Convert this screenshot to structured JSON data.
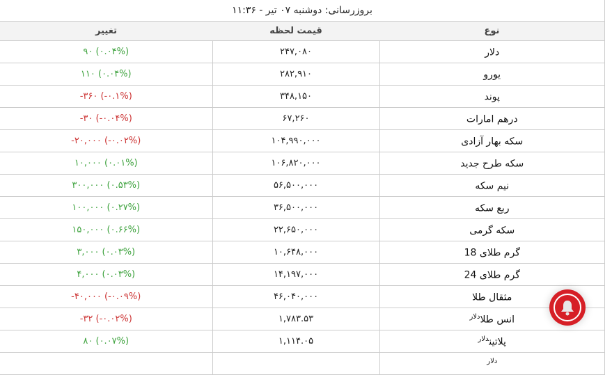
{
  "update_text": "بروزرسانی: دوشنبه ۰۷ تیر - ۱۱:۳۶",
  "headers": {
    "type": "نوع",
    "price": "قیمت لحظه",
    "change": "تغییر"
  },
  "colors": {
    "positive": "#3fa33f",
    "negative": "#cc3333",
    "bell": "#d61f26"
  },
  "rows": [
    {
      "name": "دلار",
      "unit": "",
      "price": "۲۴۷,۰۸۰",
      "change": "۹۰ (۰.۰۴%)",
      "dir": "pos"
    },
    {
      "name": "یورو",
      "unit": "",
      "price": "۲۸۲,۹۱۰",
      "change": "۱۱۰ (۰.۰۴%)",
      "dir": "pos"
    },
    {
      "name": "پوند",
      "unit": "",
      "price": "۳۴۸,۱۵۰",
      "change": "-۳۶۰ (-۰.۱%)",
      "dir": "neg"
    },
    {
      "name": "درهم امارات",
      "unit": "",
      "price": "۶۷,۲۶۰",
      "change": "-۳۰ (-۰.۰۴%)",
      "dir": "neg"
    },
    {
      "name": "سکه بهار آزادی",
      "unit": "",
      "price": "۱۰۴,۹۹۰,۰۰۰",
      "change": "-۲۰,۰۰۰ (-۰.۰۲%)",
      "dir": "neg"
    },
    {
      "name": "سکه طرح جدید",
      "unit": "",
      "price": "۱۰۶,۸۲۰,۰۰۰",
      "change": "۱۰,۰۰۰ (۰.۰۱%)",
      "dir": "pos"
    },
    {
      "name": "نیم سکه",
      "unit": "",
      "price": "۵۶,۵۰۰,۰۰۰",
      "change": "۳۰۰,۰۰۰ (۰.۵۳%)",
      "dir": "pos"
    },
    {
      "name": "ربع سکه",
      "unit": "",
      "price": "۳۶,۵۰۰,۰۰۰",
      "change": "۱۰۰,۰۰۰ (۰.۲۷%)",
      "dir": "pos"
    },
    {
      "name": "سکه گرمی",
      "unit": "",
      "price": "۲۲,۶۵۰,۰۰۰",
      "change": "۱۵۰,۰۰۰ (۰.۶۶%)",
      "dir": "pos"
    },
    {
      "name": "گرم طلای 18",
      "unit": "",
      "price": "۱۰,۶۴۸,۰۰۰",
      "change": "۳,۰۰۰ (۰.۰۳%)",
      "dir": "pos"
    },
    {
      "name": "گرم طلای 24",
      "unit": "",
      "price": "۱۴,۱۹۷,۰۰۰",
      "change": "۴,۰۰۰ (۰.۰۳%)",
      "dir": "pos"
    },
    {
      "name": "مثقال طلا",
      "unit": "",
      "price": "۴۶,۰۴۰,۰۰۰",
      "change": "-۴۰,۰۰۰ (-۰.۰۹%)",
      "dir": "neg"
    },
    {
      "name": "انس طلا",
      "unit": "دلار",
      "price": "۱,۷۸۳.۵۳",
      "change": "-۳۲ (-۰.۰۲%)",
      "dir": "neg"
    },
    {
      "name": "پلاتین",
      "unit": "دلار",
      "price": "۱,۱۱۴.۰۵",
      "change": "۸۰ (۰.۰۷%)",
      "dir": "pos"
    },
    {
      "name": "",
      "unit": "دلار",
      "price": "",
      "change": "",
      "dir": "pos"
    }
  ]
}
